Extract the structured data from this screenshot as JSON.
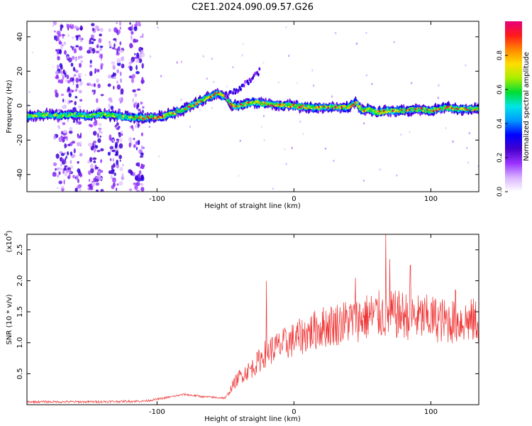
{
  "title": "C2E1.2024.090.09.57.G26",
  "chart_data": [
    {
      "type": "heatmap",
      "xlabel": "Height of straight line (km)",
      "ylabel": "Frequency (Hz)",
      "xlim": [
        -195,
        135
      ],
      "ylim": [
        -50,
        49
      ],
      "xticks": [
        -100,
        0,
        100
      ],
      "yticks": [
        -40,
        -20,
        0,
        20,
        40
      ],
      "colorbar": {
        "label": "Normalized spectral amplitude",
        "range": [
          0,
          1
        ],
        "ticks": [
          "0.0",
          "0.2",
          "0.4",
          "0.6",
          "0.8"
        ],
        "colors": [
          "#ffffff",
          "#d9b3ff",
          "#9933ff",
          "#4400cc",
          "#0000ff",
          "#0099ff",
          "#00e5e5",
          "#00dd33",
          "#aaee00",
          "#ffdd00",
          "#ff8800",
          "#ff1a1a",
          "#e6007a"
        ]
      },
      "ridge": {
        "x": [
          -195,
          -180,
          -170,
          -160,
          -150,
          -140,
          -130,
          -120,
          -110,
          -100,
          -90,
          -80,
          -70,
          -62,
          -55,
          -50,
          -45,
          -40,
          -35,
          -30,
          -20,
          -10,
          0,
          10,
          20,
          30,
          40,
          45,
          50,
          55,
          60,
          70,
          80,
          90,
          100,
          110,
          120,
          135
        ],
        "freq": [
          -6,
          -5,
          -6,
          -5,
          -6,
          -5,
          -6,
          -7,
          -7,
          -7,
          -5,
          -2,
          2,
          5,
          7,
          5,
          0,
          0,
          1,
          2,
          1,
          0,
          0,
          -1,
          -1,
          -1,
          -1,
          2,
          -3,
          -2,
          -4,
          -3,
          -3,
          -2,
          -3,
          -1,
          -2,
          -2
        ]
      },
      "hf_branch": {
        "x": [
          -50,
          -40,
          -30,
          -25
        ],
        "freq": [
          5,
          10,
          16,
          20
        ]
      },
      "scatter_bands_x": [
        -170,
        -160,
        -145,
        -130,
        -115
      ]
    },
    {
      "type": "line",
      "xlabel": "Height of straight line (km)",
      "ylabel": "SNR (10 * v/v)",
      "yscale_label": "(x10",
      "yscale_exp": "4",
      "xlim": [
        -195,
        135
      ],
      "ylim": [
        0,
        2.75
      ],
      "xticks": [
        -100,
        0,
        100
      ],
      "yticks": [
        "0.5",
        "1.0",
        "1.5",
        "2.0",
        "2.5"
      ],
      "color": "#ee3333",
      "envelope": {
        "x": [
          -195,
          -150,
          -110,
          -100,
          -80,
          -65,
          -50,
          -45,
          -40,
          -30,
          -20,
          -10,
          0,
          10,
          20,
          30,
          40,
          50,
          60,
          70,
          80,
          90,
          100,
          110,
          120,
          135
        ],
        "y": [
          0.04,
          0.04,
          0.05,
          0.08,
          0.16,
          0.12,
          0.1,
          0.3,
          0.45,
          0.6,
          0.85,
          0.95,
          1.05,
          1.15,
          1.25,
          1.3,
          1.35,
          1.4,
          1.45,
          1.45,
          1.45,
          1.4,
          1.4,
          1.35,
          1.35,
          1.35
        ]
      },
      "peaks": [
        {
          "x": -20,
          "y": 2.0
        },
        {
          "x": 67,
          "y": 2.75
        },
        {
          "x": 70,
          "y": 2.35
        },
        {
          "x": 85,
          "y": 2.25
        },
        {
          "x": 45,
          "y": 2.05
        },
        {
          "x": 118,
          "y": 1.85
        }
      ]
    }
  ]
}
